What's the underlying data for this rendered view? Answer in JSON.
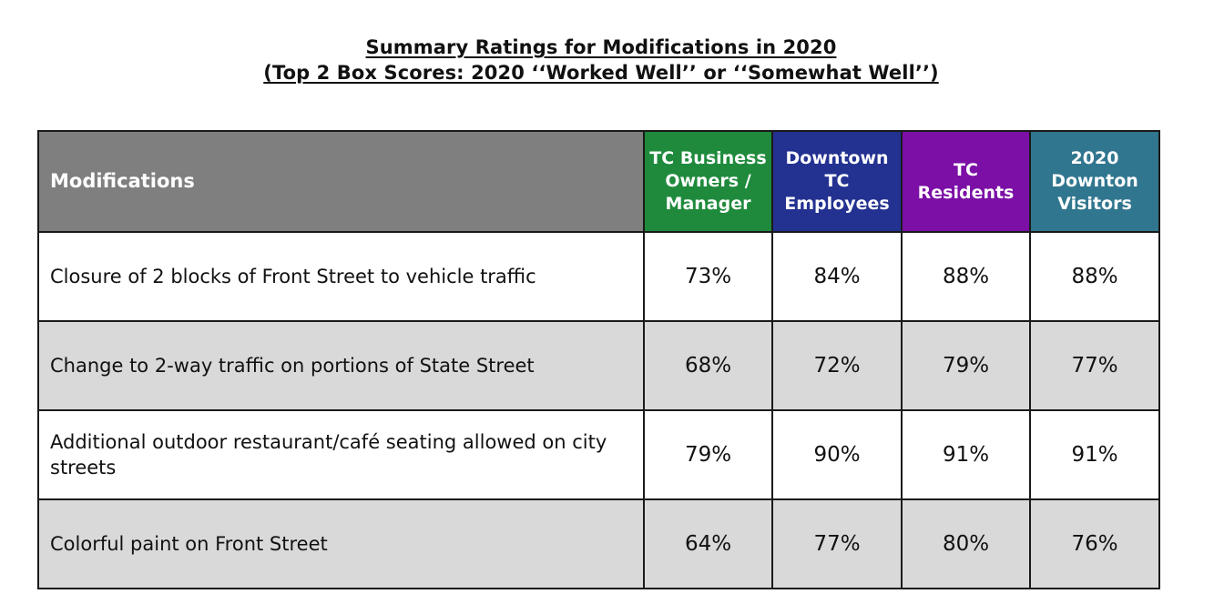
{
  "title_line_1": "Summary Ratings for Modifications in 2020",
  "title_line_2": "(Top 2 Box Scores: 2020 ‘‘Worked Well’’ or ‘‘Somewhat Well’’)",
  "chart_data": {
    "type": "table",
    "title": "Summary Ratings for Modifications in 2020",
    "subtitle": "(Top 2 Box Scores: 2020 ‘‘Worked Well’’ or ‘‘Somewhat Well’’)",
    "row_header_label": "Modifications",
    "columns": [
      {
        "name": "TC Business Owners / Manager",
        "color": "#1f8a3c"
      },
      {
        "name": "Downtown TC Employees",
        "color": "#233190"
      },
      {
        "name": "TC Residents",
        "color": "#7b0fa6"
      },
      {
        "name": "2020 Downton Visitors",
        "color": "#31768f"
      }
    ],
    "rows": [
      {
        "label": "Closure of 2 blocks of Front Street to vehicle traffic",
        "values": [
          "73%",
          "84%",
          "88%",
          "88%"
        ]
      },
      {
        "label": "Change to 2-way traffic on portions of State Street",
        "values": [
          "68%",
          "72%",
          "79%",
          "77%"
        ]
      },
      {
        "label": "Additional outdoor restaurant/café seating allowed on city streets",
        "values": [
          "79%",
          "90%",
          "91%",
          "91%"
        ]
      },
      {
        "label": "Colorful paint on Front Street",
        "values": [
          "64%",
          "77%",
          "80%",
          "76%"
        ]
      }
    ],
    "row_shading": [
      "#ffffff",
      "#d9d9d9",
      "#ffffff",
      "#d9d9d9"
    ],
    "header_gray": "#7f7f7f"
  }
}
